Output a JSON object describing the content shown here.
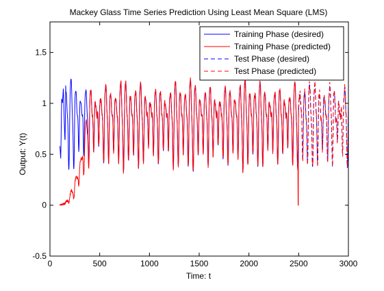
{
  "chart_data": {
    "type": "line",
    "title": "Mackey Glass Time Series Prediction Using Least Mean Square (LMS)",
    "xlabel": "Time: t",
    "ylabel": "Output: Y(t)",
    "xlim": [
      0,
      3000
    ],
    "ylim": [
      -0.5,
      1.8
    ],
    "xticks": [
      0,
      500,
      1000,
      1500,
      2000,
      2500,
      3000
    ],
    "yticks": [
      -0.5,
      0,
      0.5,
      1,
      1.5
    ],
    "grid": false,
    "legend_position": "top-right",
    "series": [
      {
        "name": "Training Phase (desired)",
        "color": "#0000ff",
        "style": "solid",
        "x_range": [
          100,
          2500
        ],
        "approx_values": {
          "min": 0.33,
          "max": 1.35,
          "period": 50,
          "initial": [
            0.58,
            0.45,
            1.05,
            1.0,
            1.15,
            0.85,
            0.6,
            1.35
          ]
        }
      },
      {
        "name": "Training Phase (predicted)",
        "color": "#ff0000",
        "style": "solid",
        "x_range": [
          100,
          2500
        ],
        "approx_values": {
          "start": 0.0,
          "warmup_end_t": 400,
          "min": 0.33,
          "max": 1.36,
          "spike": {
            "t": 2495,
            "y": 0.0
          }
        }
      },
      {
        "name": "Test Phase (desired)",
        "color": "#0000ff",
        "style": "dashed",
        "x_range": [
          2500,
          3000
        ],
        "approx_values": {
          "min": 0.37,
          "max": 1.25
        }
      },
      {
        "name": "Test Phase (predicted)",
        "color": "#ff0000",
        "style": "dashed",
        "x_range": [
          2500,
          3000
        ],
        "approx_values": {
          "min": 0.38,
          "max": 1.3
        }
      }
    ]
  }
}
